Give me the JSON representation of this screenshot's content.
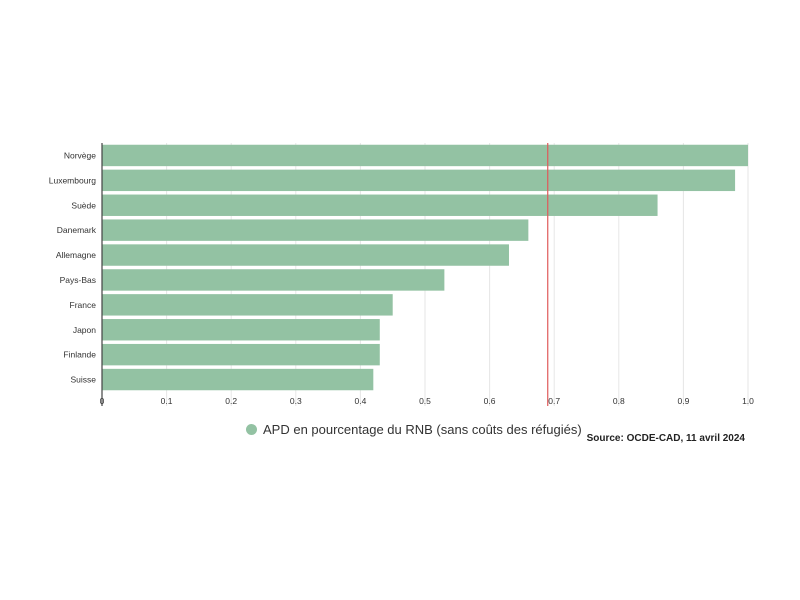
{
  "chart_data": {
    "type": "bar",
    "orientation": "horizontal",
    "categories": [
      "Norvège",
      "Luxembourg",
      "Suède",
      "Danemark",
      "Allemagne",
      "Pays-Bas",
      "France",
      "Japon",
      "Finlande",
      "Suisse"
    ],
    "series": [
      {
        "name": "APD en pourcentage du RNB (sans coûts des réfugiés)",
        "values": [
          1.0,
          0.98,
          0.86,
          0.66,
          0.63,
          0.53,
          0.45,
          0.43,
          0.43,
          0.42
        ],
        "color": "#93c2a3"
      }
    ],
    "xlim": [
      0,
      1.0
    ],
    "xticks": [
      0,
      0.1,
      0.2,
      0.3,
      0.4,
      0.5,
      0.6,
      0.7,
      0.8,
      0.9,
      1.0
    ],
    "tick_labels": [
      "0",
      "0.1",
      "0.2",
      "0.3",
      "0.4",
      "0.5",
      "0.6",
      "0.7",
      "0.8",
      "0.9",
      "1.0"
    ],
    "reference_line": {
      "value": 0.69,
      "color": "#e05a5a"
    },
    "grid": true,
    "legend_position": "bottom",
    "source": "Source: OCDE-CAD, 11 avril 2024"
  }
}
